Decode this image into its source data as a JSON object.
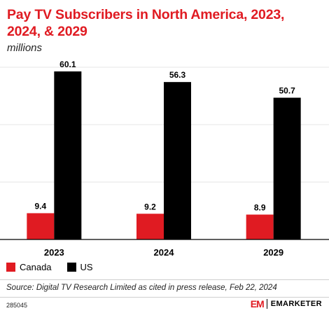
{
  "header": {
    "title": "Pay TV Subscribers in North America, 2023, 2024, & 2029",
    "subtitle": "millions"
  },
  "colors": {
    "title": "#e01b22",
    "canada": "#e01b22",
    "us": "#000000",
    "grid": "#e6e6e6",
    "axis": "#000000"
  },
  "chart_data": {
    "type": "bar",
    "categories": [
      "2023",
      "2024",
      "2029"
    ],
    "series": [
      {
        "name": "Canada",
        "values": [
          9.4,
          9.2,
          8.9
        ],
        "labels": [
          "9.4",
          "9.2",
          "8.9"
        ]
      },
      {
        "name": "US",
        "values": [
          60.1,
          56.3,
          50.7
        ],
        "labels": [
          "60.1",
          "56.3",
          "50.7"
        ]
      }
    ],
    "title": "Pay TV Subscribers in North America, 2023, 2024, & 2029",
    "ylabel": "millions",
    "ylim": [
      0,
      60.1
    ],
    "grid": true,
    "legend": "bottom-left"
  },
  "footer": {
    "source": "Source: Digital TV Research Limited as cited in press release, Feb 22, 2024",
    "chart_id": "285045",
    "brand_mark": "EM",
    "brand_name": "EMARKETER"
  }
}
